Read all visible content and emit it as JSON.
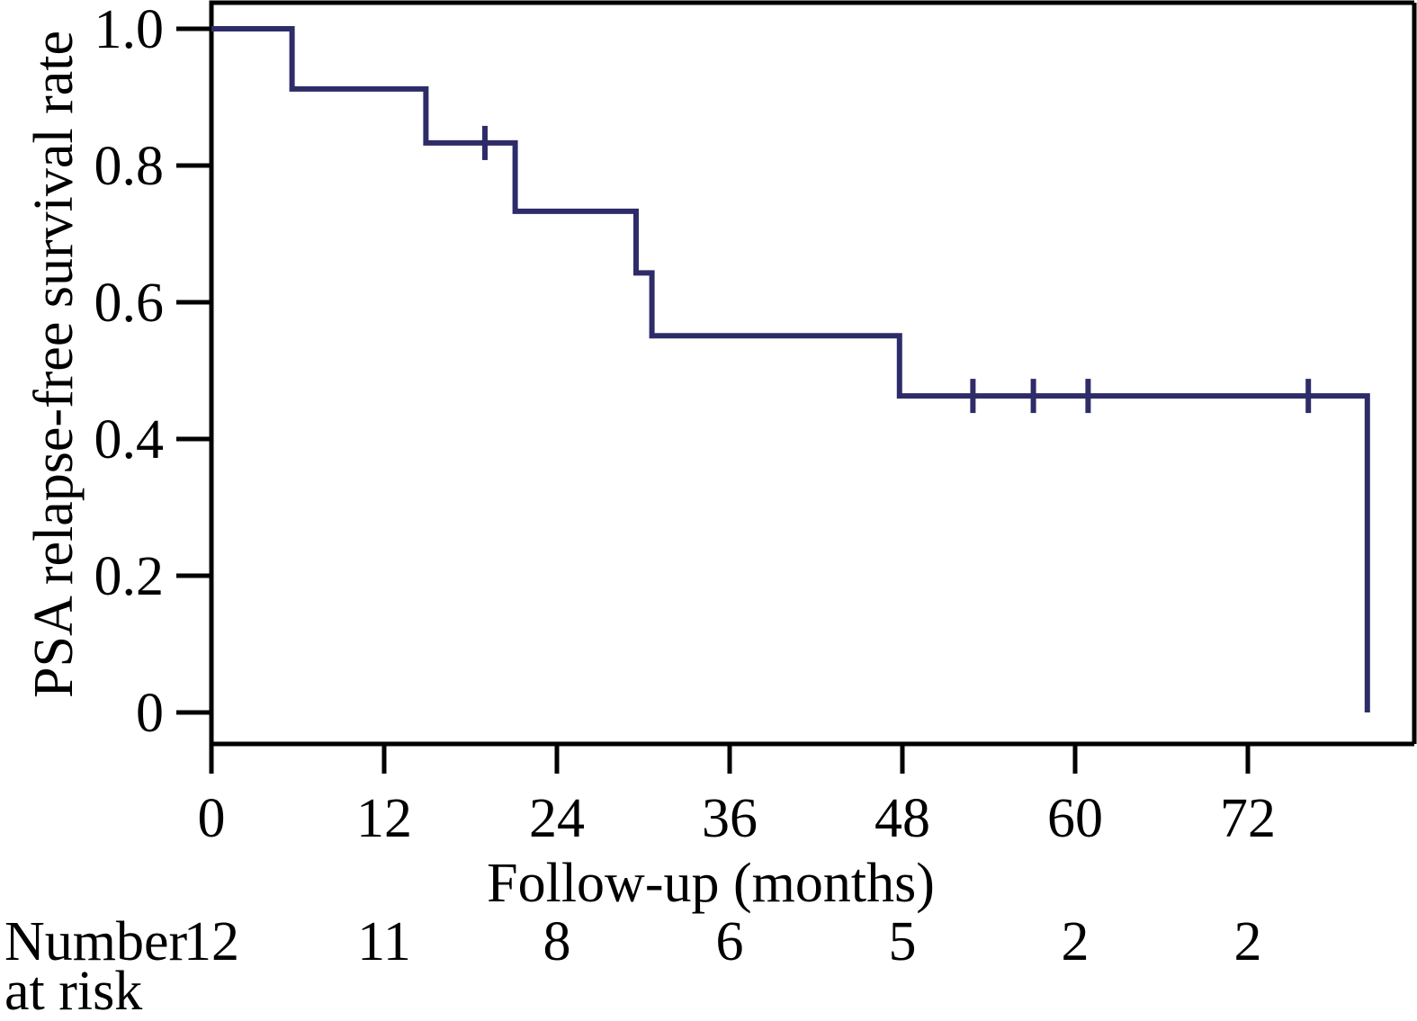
{
  "chart_data": {
    "type": "line",
    "subtype": "kaplan-meier-step-curve",
    "title": "",
    "xlabel": "Follow-up (months)",
    "ylabel": "PSA relapse-free survival rate",
    "xlim": [
      0,
      83.6
    ],
    "ylim": [
      0,
      1.0
    ],
    "grid": false,
    "legend": "none",
    "xticks": [
      {
        "value": 0,
        "label": "0"
      },
      {
        "value": 12,
        "label": "12"
      },
      {
        "value": 24,
        "label": "24"
      },
      {
        "value": 36,
        "label": "36"
      },
      {
        "value": 48,
        "label": "48"
      },
      {
        "value": 60,
        "label": "60"
      },
      {
        "value": 72,
        "label": "72"
      }
    ],
    "yticks": [
      {
        "value": 0.0,
        "label": "0"
      },
      {
        "value": 0.2,
        "label": "0.2"
      },
      {
        "value": 0.4,
        "label": "0.4"
      },
      {
        "value": 0.6,
        "label": "0.6"
      },
      {
        "value": 0.8,
        "label": "0.8"
      },
      {
        "value": 1.0,
        "label": "1.0"
      }
    ],
    "series": [
      {
        "name": "PSA relapse-free survival",
        "color": "#2e2c68",
        "start_survival": 1.0,
        "event_times_months": [
          5.6,
          14.9,
          21.1,
          29.5,
          30.6,
          47.8,
          80.3
        ],
        "survival_after_event": [
          0.912,
          0.833,
          0.733,
          0.643,
          0.551,
          0.463,
          0.0
        ]
      }
    ],
    "censor_marks": [
      {
        "t": 19.0,
        "s": 0.833
      },
      {
        "t": 52.9,
        "s": 0.463
      },
      {
        "t": 57.1,
        "s": 0.463
      },
      {
        "t": 60.9,
        "s": 0.463
      },
      {
        "t": 76.2,
        "s": 0.463
      }
    ],
    "risk_table": {
      "label_line1": "Number",
      "label_line2": "at risk",
      "times": [
        0,
        12,
        24,
        36,
        48,
        60,
        72
      ],
      "counts": [
        "12",
        "11",
        "8",
        "6",
        "5",
        "2",
        "2"
      ]
    },
    "axis_color": "#000000",
    "background_color": "#ffffff"
  }
}
